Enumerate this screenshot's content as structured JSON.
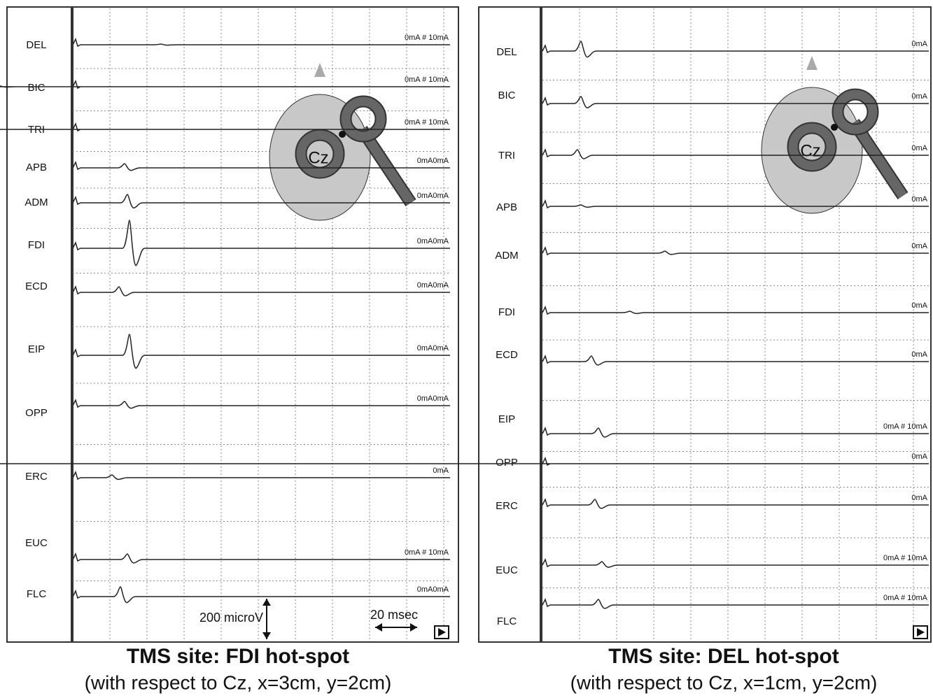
{
  "panels": [
    {
      "channels": [
        {
          "label": "DEL",
          "stim": "0mA  # 10mA"
        },
        {
          "label": "BIC",
          "stim": "0mA  # 10mA"
        },
        {
          "label": "TRI",
          "stim": "0mA  # 10mA"
        },
        {
          "label": "APB",
          "stim": "0mA0mA"
        },
        {
          "label": "ADM",
          "stim": "0mA0mA"
        },
        {
          "label": "FDI",
          "stim": "0mA0mA"
        },
        {
          "label": "ECD",
          "stim": "0mA0mA"
        },
        {
          "label": "EIP",
          "stim": "0mA0mA"
        },
        {
          "label": "OPP",
          "stim": "0mA0mA"
        },
        {
          "label": "ERC",
          "stim": "0mA"
        },
        {
          "label": "EUC",
          "stim": "0mA  # 10mA"
        },
        {
          "label": "FLC",
          "stim": "0mA0mA"
        }
      ],
      "coil_label": "Cz",
      "scale_amplitude": "200 microV",
      "scale_time": "20 msec",
      "title": "TMS site: FDI hot-spot",
      "subtitle": "(with respect to Cz, x=3cm, y=2cm)"
    },
    {
      "channels": [
        {
          "label": "DEL",
          "stim": "0mA"
        },
        {
          "label": "BIC",
          "stim": "0mA"
        },
        {
          "label": "TRI",
          "stim": "0mA"
        },
        {
          "label": "APB",
          "stim": "0mA"
        },
        {
          "label": "ADM",
          "stim": "0mA"
        },
        {
          "label": "FDI",
          "stim": "0mA"
        },
        {
          "label": "ECD",
          "stim": "0mA"
        },
        {
          "label": "EIP",
          "stim": "0mA  # 10mA"
        },
        {
          "label": "OPP",
          "stim": "0mA"
        },
        {
          "label": "ERC",
          "stim": "0mA"
        },
        {
          "label": "EUC",
          "stim": "0mA  # 10mA"
        },
        {
          "label": "FLC",
          "stim": "0mA  # 10mA"
        }
      ],
      "coil_label": "Cz",
      "title": "TMS site: DEL hot-spot",
      "subtitle": "(with respect to Cz, x=1cm, y=2cm)"
    }
  ]
}
